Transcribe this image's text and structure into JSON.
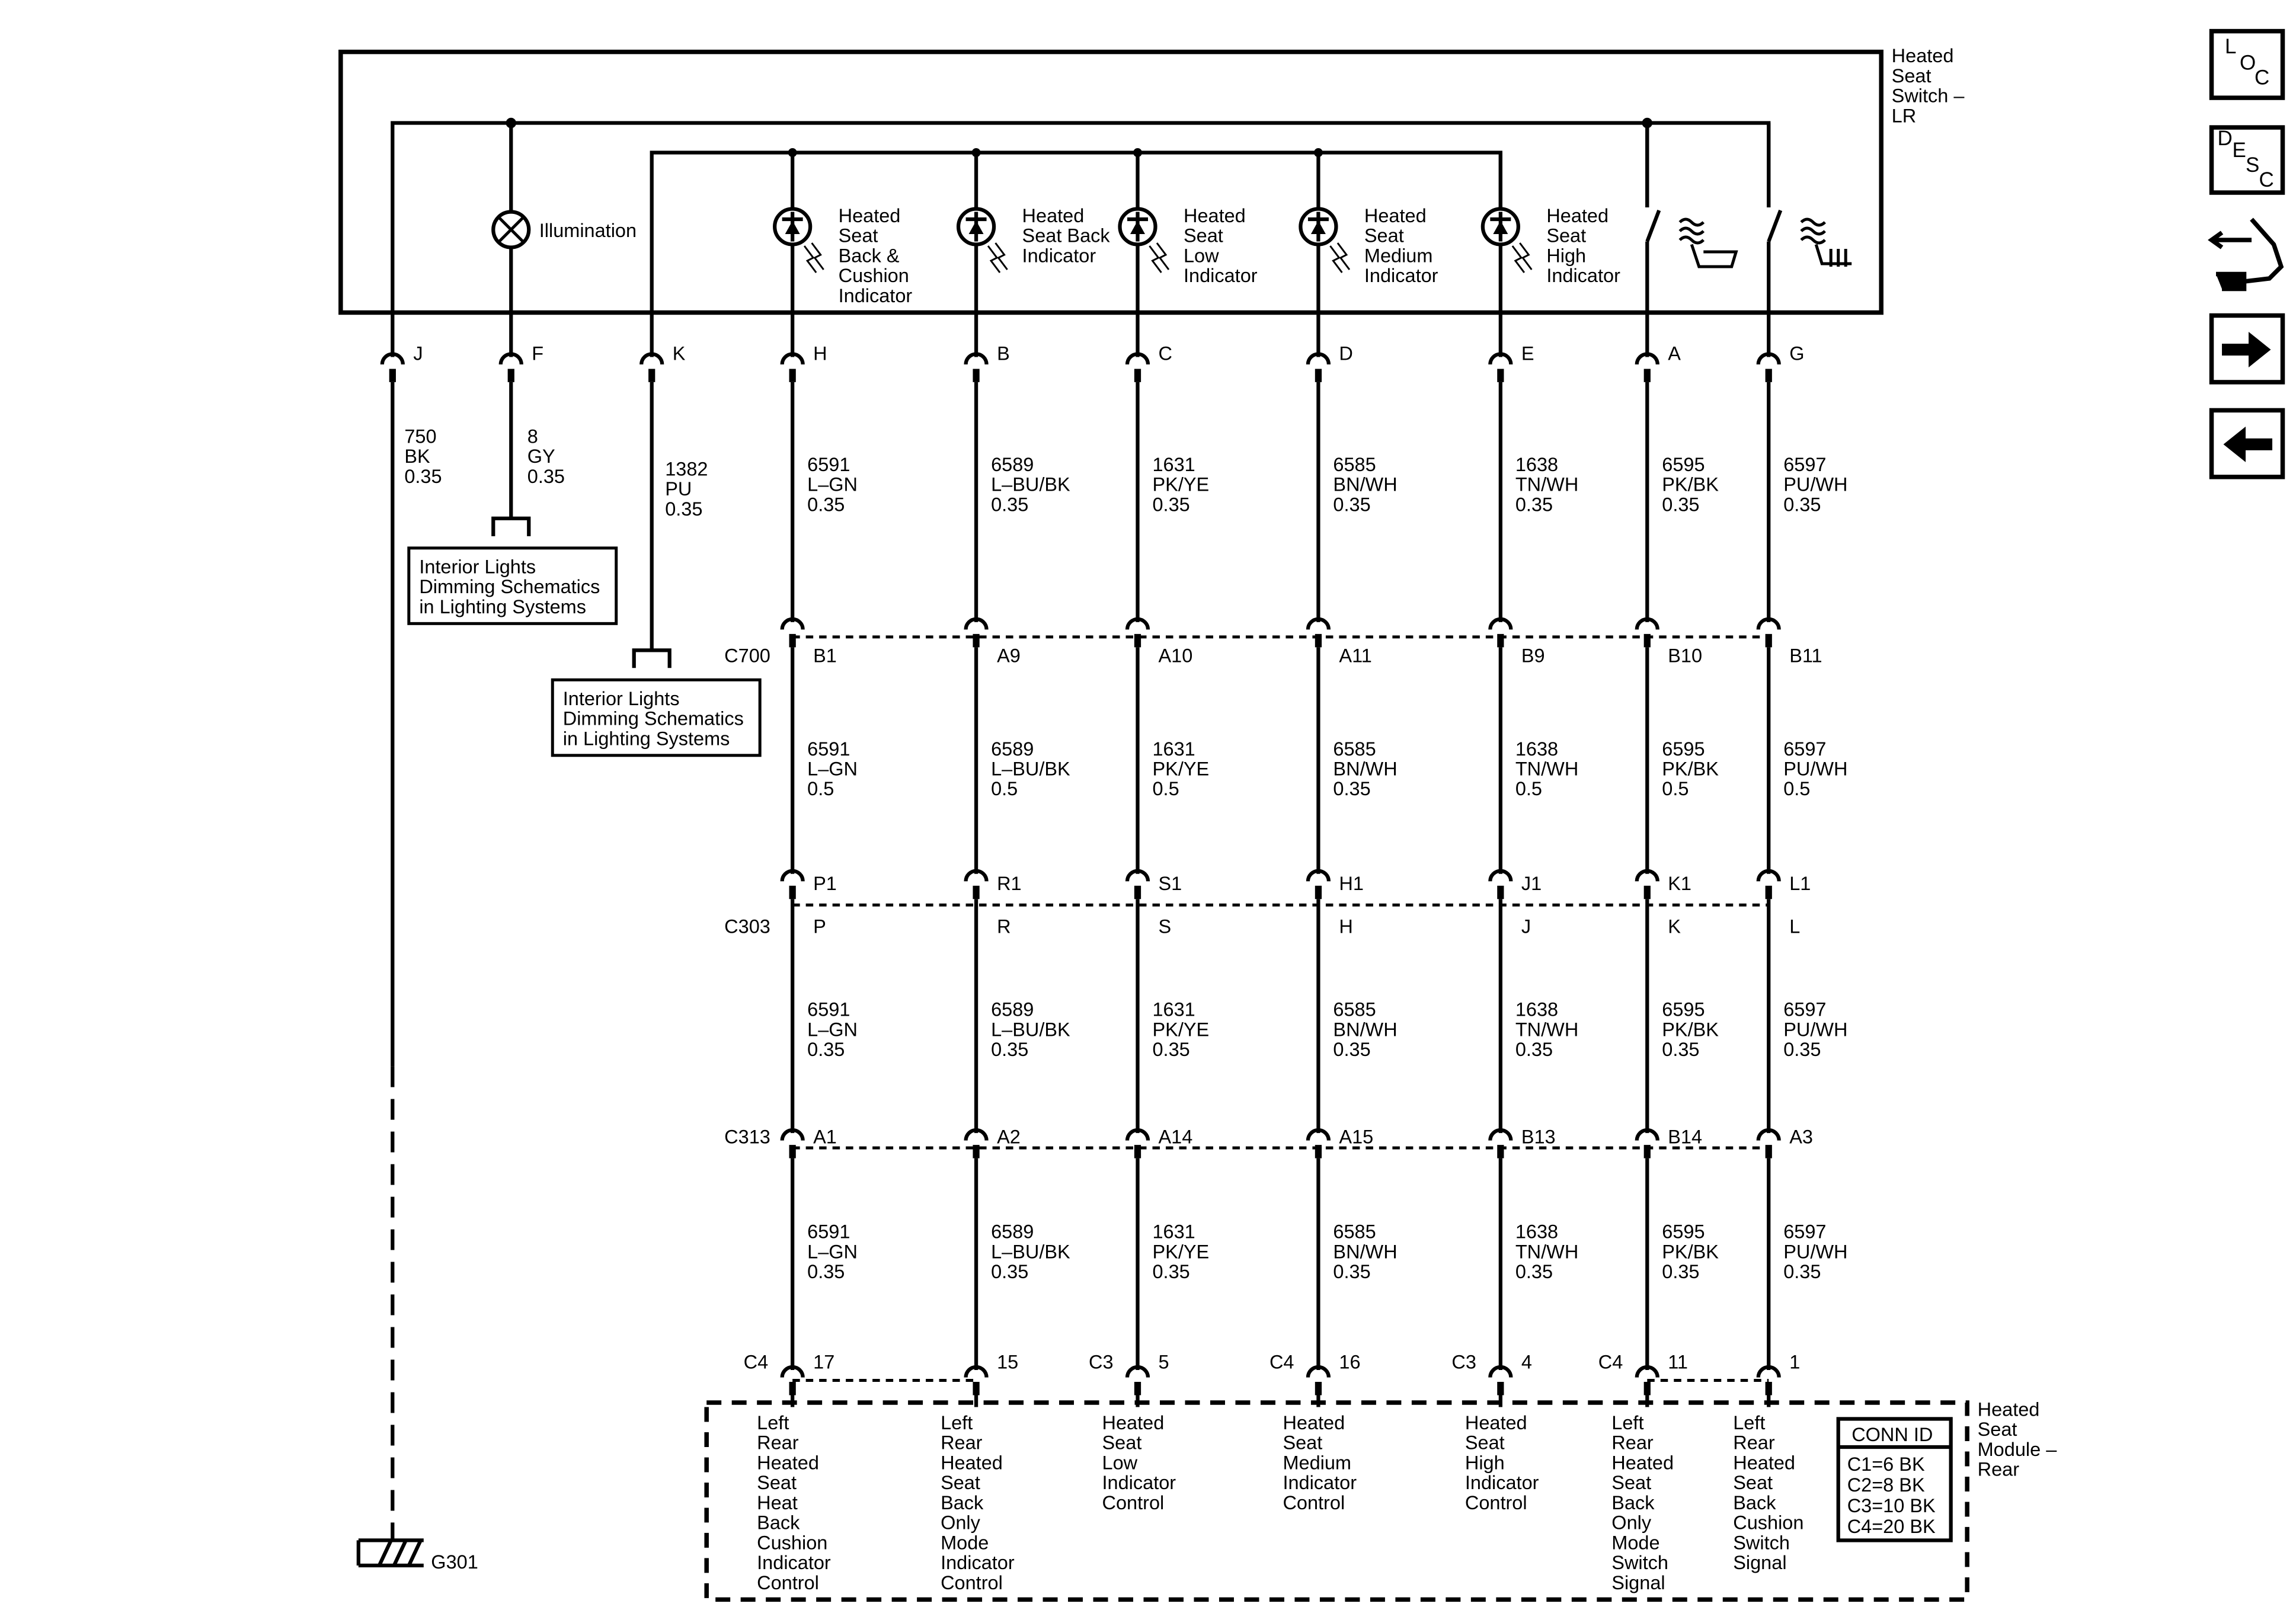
{
  "switch": {
    "title": [
      "Heated",
      "Seat",
      "Switch –",
      "LR"
    ],
    "illumination_label": "Illumination",
    "indicators": [
      {
        "col": "H",
        "label": [
          "Heated",
          "Seat",
          "Back &",
          "Cushion",
          "Indicator"
        ]
      },
      {
        "col": "B",
        "label": [
          "Heated",
          "Seat Back",
          "Indicator"
        ]
      },
      {
        "col": "C",
        "label": [
          "Heated",
          "Seat",
          "Low",
          "Indicator"
        ]
      },
      {
        "col": "D",
        "label": [
          "Heated",
          "Seat",
          "Medium",
          "Indicator"
        ]
      },
      {
        "col": "E",
        "label": [
          "Heated",
          "Seat",
          "High",
          "Indicator"
        ]
      }
    ],
    "switch_icons": [
      "seat-cushion-heat-icon",
      "seat-back-heat-icon"
    ]
  },
  "circuits": [
    {
      "pin": "J",
      "wire": [
        "750",
        "BK",
        "0.35"
      ]
    },
    {
      "pin": "F",
      "wire": [
        "8",
        "GY",
        "0.35"
      ]
    },
    {
      "pin": "K",
      "wire": [
        "1382",
        "PU",
        "0.35"
      ]
    },
    {
      "pin": "H",
      "wires": [
        [
          "6591",
          "L–GN",
          "0.35"
        ],
        [
          "6591",
          "L–GN",
          "0.5"
        ],
        [
          "6591",
          "L–GN",
          "0.35"
        ],
        [
          "6591",
          "L–GN",
          "0.35"
        ]
      ],
      "c700": "B1",
      "c303_top": "P1",
      "c303_bottom": "P",
      "c313": "A1",
      "module_pin": "17",
      "module_conn": "C4",
      "module_label": [
        "Left",
        "Rear",
        "Heated",
        "Seat",
        "Heat",
        "Back",
        "Cushion",
        "Indicator",
        "Control"
      ]
    },
    {
      "pin": "B",
      "wires": [
        [
          "6589",
          "L–BU/BK",
          "0.35"
        ],
        [
          "6589",
          "L–BU/BK",
          "0.5"
        ],
        [
          "6589",
          "L–BU/BK",
          "0.35"
        ],
        [
          "6589",
          "L–BU/BK",
          "0.35"
        ]
      ],
      "c700": "A9",
      "c303_top": "R1",
      "c303_bottom": "R",
      "c313": "A2",
      "module_pin": "15",
      "module_conn": "",
      "module_label": [
        "Left",
        "Rear",
        "Heated",
        "Seat",
        "Back",
        "Only",
        "Mode",
        "Indicator",
        "Control"
      ]
    },
    {
      "pin": "C",
      "wires": [
        [
          "1631",
          "PK/YE",
          "0.35"
        ],
        [
          "1631",
          "PK/YE",
          "0.5"
        ],
        [
          "1631",
          "PK/YE",
          "0.35"
        ],
        [
          "1631",
          "PK/YE",
          "0.35"
        ]
      ],
      "c700": "A10",
      "c303_top": "S1",
      "c303_bottom": "S",
      "c313": "A14",
      "module_pin": "5",
      "module_conn": "C3",
      "module_label": [
        "Heated",
        "Seat",
        "Low",
        "Indicator",
        "Control"
      ]
    },
    {
      "pin": "D",
      "wires": [
        [
          "6585",
          "BN/WH",
          "0.35"
        ],
        [
          "6585",
          "BN/WH",
          "0.35"
        ],
        [
          "6585",
          "BN/WH",
          "0.35"
        ],
        [
          "6585",
          "BN/WH",
          "0.35"
        ]
      ],
      "c700": "A11",
      "c303_top": "H1",
      "c303_bottom": "H",
      "c313": "A15",
      "module_pin": "16",
      "module_conn": "C4",
      "module_label": [
        "Heated",
        "Seat",
        "Medium",
        "Indicator",
        "Control"
      ]
    },
    {
      "pin": "E",
      "wires": [
        [
          "1638",
          "TN/WH",
          "0.35"
        ],
        [
          "1638",
          "TN/WH",
          "0.5"
        ],
        [
          "1638",
          "TN/WH",
          "0.35"
        ],
        [
          "1638",
          "TN/WH",
          "0.35"
        ]
      ],
      "c700": "B9",
      "c303_top": "J1",
      "c303_bottom": "J",
      "c313": "B13",
      "module_pin": "4",
      "module_conn": "C3",
      "module_label": [
        "Heated",
        "Seat",
        "High",
        "Indicator",
        "Control"
      ]
    },
    {
      "pin": "A",
      "wires": [
        [
          "6595",
          "PK/BK",
          "0.35"
        ],
        [
          "6595",
          "PK/BK",
          "0.5"
        ],
        [
          "6595",
          "PK/BK",
          "0.35"
        ],
        [
          "6595",
          "PK/BK",
          "0.35"
        ]
      ],
      "c700": "B10",
      "c303_top": "K1",
      "c303_bottom": "K",
      "c313": "B14",
      "module_pin": "11",
      "module_conn": "C4",
      "module_label": [
        "Left",
        "Rear",
        "Heated",
        "Seat",
        "Back",
        "Only",
        "Mode",
        "Switch",
        "Signal"
      ]
    },
    {
      "pin": "G",
      "wires": [
        [
          "6597",
          "PU/WH",
          "0.35"
        ],
        [
          "6597",
          "PU/WH",
          "0.5"
        ],
        [
          "6597",
          "PU/WH",
          "0.35"
        ],
        [
          "6597",
          "PU/WH",
          "0.35"
        ]
      ],
      "c700": "B11",
      "c303_top": "L1",
      "c303_bottom": "L",
      "c313": "A3",
      "module_pin": "1",
      "module_conn": "",
      "module_label": [
        "Left",
        "Rear",
        "Heated",
        "Seat",
        "Back",
        "Cushion",
        "Switch",
        "Signal"
      ]
    }
  ],
  "connectors": {
    "c700": "C700",
    "c303": "C303",
    "c313": "C313"
  },
  "references": [
    [
      "Interior Lights",
      "Dimming Schematics",
      "in Lighting Systems"
    ],
    [
      "Interior Lights",
      "Dimming Schematics",
      "in Lighting Systems"
    ]
  ],
  "ground": "G301",
  "module": {
    "title": [
      "Heated",
      "Seat",
      "Module –",
      "Rear"
    ],
    "conn_id_title": "CONN ID",
    "conn_ids": [
      "C1=6 BK",
      "C2=8 BK",
      "C3=10 BK",
      "C4=20 BK"
    ]
  },
  "nav": {
    "loc": [
      "L",
      "O",
      "C"
    ],
    "desc": [
      "D",
      "E",
      "S",
      "C"
    ],
    "icons": [
      "loc-button",
      "desc-button",
      "component-icon",
      "next-arrow-icon",
      "previous-arrow-icon"
    ]
  }
}
